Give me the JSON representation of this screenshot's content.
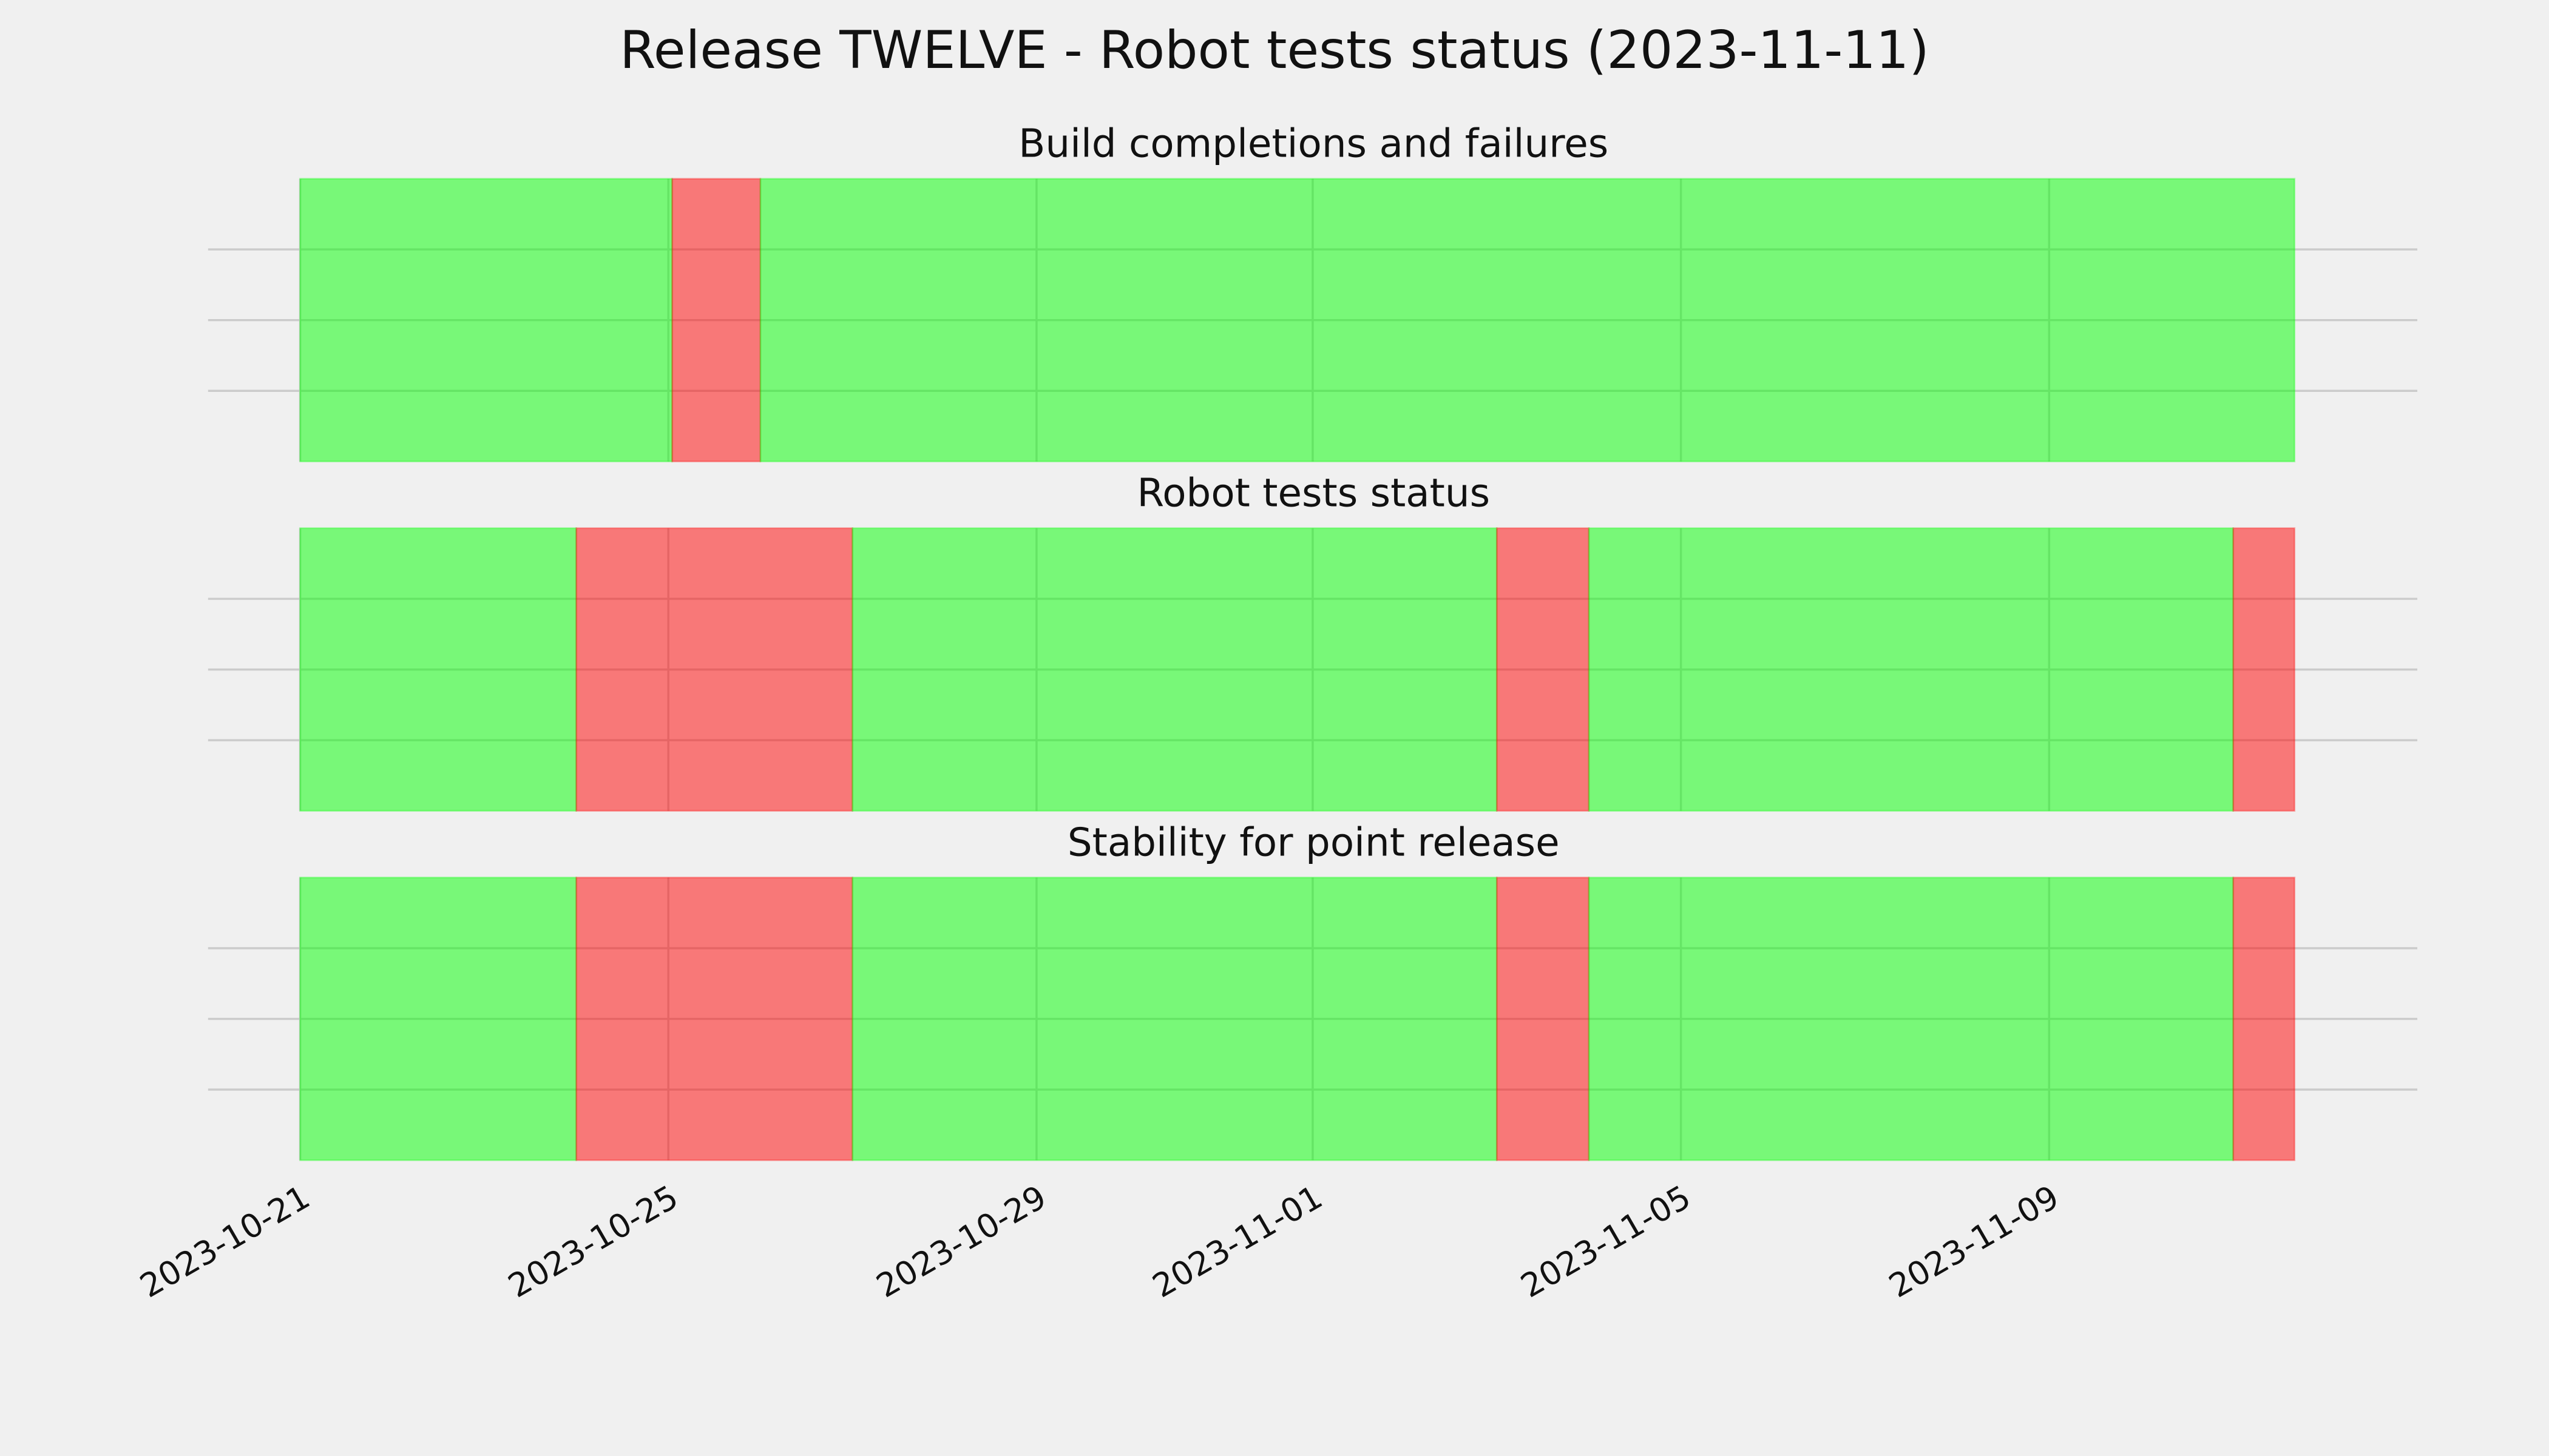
{
  "chart_data": {
    "type": "timeline",
    "title": "Release TWELVE - Robot tests status (2023-11-11)",
    "xlim": [
      "2023-10-20",
      "2023-11-13"
    ],
    "xticks": [
      "2023-10-21",
      "2023-10-25",
      "2023-10-29",
      "2023-11-01",
      "2023-11-05",
      "2023-11-09"
    ],
    "ylim": [
      0,
      1
    ],
    "yticks": [
      0.25,
      0.5,
      0.75
    ],
    "grid": true,
    "alpha": 0.5,
    "panels": [
      {
        "title": "Build completions and failures",
        "segments": [
          {
            "start": "2023-10-21T00:00",
            "end": "2023-10-25T01:00",
            "color": "#00ff00"
          },
          {
            "start": "2023-10-25T01:00",
            "end": "2023-10-26T00:00",
            "color": "#ff0000"
          },
          {
            "start": "2023-10-26T00:00",
            "end": "2023-11-11T16:00",
            "color": "#00ff00"
          }
        ]
      },
      {
        "title": "Robot tests status",
        "segments": [
          {
            "start": "2023-10-21T00:00",
            "end": "2023-10-24T00:00",
            "color": "#00ff00"
          },
          {
            "start": "2023-10-24T00:00",
            "end": "2023-10-27T00:00",
            "color": "#ff0000"
          },
          {
            "start": "2023-10-27T00:00",
            "end": "2023-11-03T00:00",
            "color": "#00ff00"
          },
          {
            "start": "2023-11-03T00:00",
            "end": "2023-11-04T00:00",
            "color": "#ff0000"
          },
          {
            "start": "2023-11-04T00:00",
            "end": "2023-11-11T00:00",
            "color": "#00ff00"
          },
          {
            "start": "2023-11-11T00:00",
            "end": "2023-11-11T16:00",
            "color": "#ff0000"
          }
        ]
      },
      {
        "title": "Stability for point release",
        "segments": [
          {
            "start": "2023-10-21T00:00",
            "end": "2023-10-24T00:00",
            "color": "#00ff00"
          },
          {
            "start": "2023-10-24T00:00",
            "end": "2023-10-27T00:00",
            "color": "#ff0000"
          },
          {
            "start": "2023-10-27T00:00",
            "end": "2023-11-03T00:00",
            "color": "#00ff00"
          },
          {
            "start": "2023-11-03T00:00",
            "end": "2023-11-04T00:00",
            "color": "#ff0000"
          },
          {
            "start": "2023-11-04T00:00",
            "end": "2023-11-11T00:00",
            "color": "#00ff00"
          },
          {
            "start": "2023-11-11T00:00",
            "end": "2023-11-11T16:00",
            "color": "#ff0000"
          }
        ]
      }
    ]
  }
}
